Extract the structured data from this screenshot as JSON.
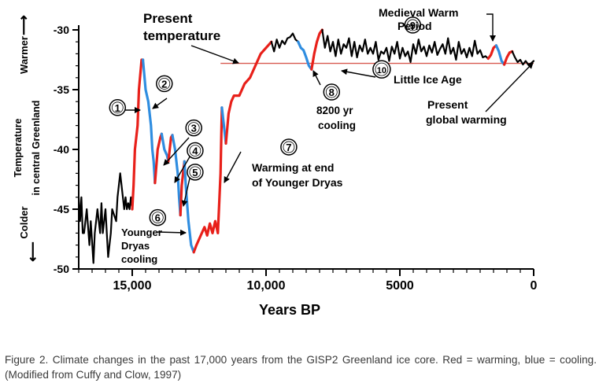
{
  "chart_data": {
    "type": "line",
    "xlabel": "Years BP",
    "ylabel_outer_top": "Warmer",
    "ylabel_outer_bottom": "Colder",
    "ylabel_inner_1": "Temperature",
    "ylabel_inner_2": "in central Greenland",
    "xlim": [
      17000,
      0
    ],
    "ylim": [
      -50,
      -29
    ],
    "x_ticks": [
      15000,
      10000,
      5000,
      0
    ],
    "x_tick_labels": [
      "15,000",
      "10,000",
      "5000",
      "0"
    ],
    "y_ticks": [
      -30,
      -35,
      -40,
      -45,
      -50
    ],
    "y_tick_labels": [
      "-30",
      "-35",
      "-40",
      "-45",
      "-50"
    ],
    "colors": {
      "warming": "#e8201a",
      "cooling": "#2f8de0",
      "base": "#000000",
      "present_line": "#d85a50"
    },
    "present_temperature": -32.8,
    "series": [
      {
        "color": "black",
        "x": [
          17000,
          16950,
          16900,
          16850,
          16800,
          16700,
          16600,
          16550,
          16450,
          16400,
          16300,
          16200,
          16150,
          16100,
          16000,
          15950,
          15900,
          15800,
          15750,
          15600,
          15550,
          15500,
          15450,
          15350,
          15300,
          15250,
          15200,
          15150,
          15100,
          15050,
          15000
        ],
        "y": [
          -44,
          -46,
          -44,
          -47,
          -47,
          -45,
          -48,
          -46,
          -49.5,
          -47,
          -45,
          -47,
          -44.5,
          -47,
          -45,
          -47,
          -49,
          -47,
          -45,
          -46,
          -44,
          -43,
          -42,
          -44,
          -45,
          -44,
          -45,
          -44.5,
          -45,
          -44,
          -45
        ]
      },
      {
        "color": "red",
        "x": [
          15000,
          14950,
          14900,
          14800,
          14750,
          14650,
          14600
        ],
        "y": [
          -45,
          -43,
          -40,
          -38,
          -35,
          -32.5,
          -32.5
        ]
      },
      {
        "color": "blue",
        "x": [
          14600,
          14500,
          14400,
          14300,
          14250,
          14200,
          14150
        ],
        "y": [
          -32.5,
          -35,
          -36,
          -38,
          -40,
          -41,
          -42.8
        ]
      },
      {
        "color": "red",
        "x": [
          14150,
          14050,
          13950,
          13900
        ],
        "y": [
          -42.8,
          -40,
          -39,
          -38.7
        ]
      },
      {
        "color": "blue",
        "x": [
          13900,
          13800,
          13700,
          13650
        ],
        "y": [
          -38.7,
          -40,
          -40.5,
          -41
        ]
      },
      {
        "color": "red",
        "x": [
          13650,
          13600,
          13550,
          13500
        ],
        "y": [
          -41,
          -40,
          -39,
          -38.8
        ]
      },
      {
        "color": "blue",
        "x": [
          13500,
          13400,
          13300,
          13250,
          13200
        ],
        "y": [
          -38.8,
          -40,
          -42,
          -44,
          -45.5
        ]
      },
      {
        "color": "red",
        "x": [
          13200,
          13150,
          13100,
          13050
        ],
        "y": [
          -45.5,
          -43,
          -42,
          -41
        ]
      },
      {
        "color": "blue",
        "x": [
          13050,
          13000,
          12900,
          12800,
          12700
        ],
        "y": [
          -41,
          -43,
          -46,
          -48,
          -48.6
        ]
      },
      {
        "color": "red",
        "x": [
          12700,
          12600,
          12500,
          12400,
          12300,
          12200,
          12100,
          12000,
          11900,
          11800,
          11700,
          11650
        ],
        "y": [
          -48.6,
          -48,
          -47.5,
          -47,
          -46.5,
          -47.2,
          -46.2,
          -47,
          -46,
          -47,
          -42,
          -36.5
        ]
      },
      {
        "color": "blue",
        "x": [
          11650,
          11500
        ],
        "y": [
          -36.5,
          -39.5
        ]
      },
      {
        "color": "red",
        "x": [
          11500,
          11400,
          11300,
          11200,
          11000,
          10800,
          10600,
          10400,
          10200,
          10000,
          9800
        ],
        "y": [
          -39.5,
          -37,
          -36,
          -35.5,
          -35.5,
          -34.5,
          -34,
          -33,
          -32,
          -31.5,
          -31
        ]
      },
      {
        "color": "black",
        "x": [
          9800,
          9700,
          9600,
          9500,
          9400,
          9300,
          9200,
          9100,
          9000,
          8900,
          8800
        ],
        "y": [
          -31,
          -31.8,
          -30.8,
          -31.5,
          -30.9,
          -31.2,
          -30.7,
          -30.6,
          -30.3,
          -30.8,
          -31
        ]
      },
      {
        "color": "blue",
        "x": [
          8800,
          8700,
          8600,
          8500,
          8400,
          8300
        ],
        "y": [
          -31,
          -31.5,
          -31.7,
          -32.3,
          -33,
          -33.3
        ]
      },
      {
        "color": "red",
        "x": [
          8300,
          8200,
          8100,
          8000,
          7900
        ],
        "y": [
          -33.3,
          -32,
          -31,
          -30.3,
          -30
        ]
      },
      {
        "color": "black",
        "x": [
          7900,
          7800,
          7700,
          7600,
          7500,
          7400,
          7300,
          7200,
          7100,
          7000,
          6900,
          6800,
          6700,
          6600,
          6500,
          6400,
          6300,
          6200,
          6100,
          6000,
          5900,
          5800,
          5700,
          5600,
          5500,
          5400,
          5300,
          5200,
          5100,
          5000,
          4900,
          4800,
          4700,
          4600,
          4500,
          4400,
          4300,
          4200,
          4100,
          4000,
          3900,
          3800,
          3700,
          3600,
          3500,
          3400,
          3300,
          3200,
          3100,
          3000,
          2900,
          2800,
          2700,
          2600,
          2500,
          2400,
          2300,
          2200,
          2100,
          2000,
          1900,
          1800,
          1700
        ],
        "y": [
          -30,
          -31.5,
          -30.5,
          -31.8,
          -31,
          -32.2,
          -30.8,
          -32,
          -31.2,
          -31.5,
          -30.7,
          -32.2,
          -31,
          -32.3,
          -31.3,
          -31.8,
          -30.8,
          -32,
          -31.5,
          -32,
          -31,
          -32.5,
          -31.8,
          -32,
          -31.5,
          -32.6,
          -31.4,
          -32,
          -31,
          -32.4,
          -31.5,
          -32.2,
          -31.8,
          -32.7,
          -31.2,
          -32,
          -30.8,
          -31.8,
          -31.4,
          -32.2,
          -31.3,
          -31.9,
          -31,
          -32.1,
          -31.6,
          -31.2,
          -32,
          -30.7,
          -32,
          -31.5,
          -32.5,
          -31,
          -32,
          -31.6,
          -32.3,
          -31.5,
          -32.2,
          -30.9,
          -32,
          -31.7,
          -32.3,
          -32.2,
          -32.4
        ]
      },
      {
        "color": "red",
        "x": [
          1700,
          1600,
          1500,
          1400
        ],
        "y": [
          -32.4,
          -32.1,
          -31.5,
          -31.3
        ]
      },
      {
        "color": "blue",
        "x": [
          1400,
          1300,
          1200,
          1100
        ],
        "y": [
          -31.3,
          -31.8,
          -32.6,
          -32.9
        ]
      },
      {
        "color": "red",
        "x": [
          1100,
          1000,
          900,
          800
        ],
        "y": [
          -32.9,
          -32.3,
          -31.9,
          -31.8
        ]
      },
      {
        "color": "black",
        "x": [
          800,
          700,
          600,
          500,
          400,
          300,
          200,
          100,
          0
        ],
        "y": [
          -31.8,
          -32.3,
          -32.7,
          -32.5,
          -32.9,
          -32.6,
          -32.9,
          -32.8,
          -32.6
        ]
      }
    ],
    "annotations": [
      {
        "num": "1",
        "x": 15550,
        "y": -36.5
      },
      {
        "num": "2",
        "x": 13800,
        "y": -34.5
      },
      {
        "num": "3",
        "x": 12700,
        "y": -38.2
      },
      {
        "num": "4",
        "x": 12650,
        "y": -40.1
      },
      {
        "num": "5",
        "x": 12650,
        "y": -41.9
      },
      {
        "num": "6",
        "x": 14050,
        "y": -45.7
      },
      {
        "num": "7",
        "x": 9150,
        "y": -39.8
      },
      {
        "num": "8",
        "x": 7550,
        "y": -35.2
      },
      {
        "num": "9",
        "x": 4520,
        "y": -29.6
      },
      {
        "num": "10",
        "x": 5680,
        "y": -33.3
      }
    ],
    "labels": {
      "present_temp_1": "Present",
      "present_temp_2": "temperature",
      "medieval_1": "Medieval Warm",
      "medieval_2": "Period",
      "little_ice_age": "Little Ice Age",
      "cooling_8200_1": "8200 yr",
      "cooling_8200_2": "cooling",
      "present_gw_1": "Present",
      "present_gw_2": "global warming",
      "warming_yd_1": "Warming at end",
      "warming_yd_2": "of Younger Dryas",
      "yd_cooling_1": "Younger",
      "yd_cooling_2": "Dryas",
      "yd_cooling_3": "cooling"
    }
  },
  "caption": "Figure 2. Climate changes in the past 17,000 years from the GISP2 Greenland ice core. Red = warming, blue = cooling. (Modified from Cuffy and Clow, 1997)"
}
